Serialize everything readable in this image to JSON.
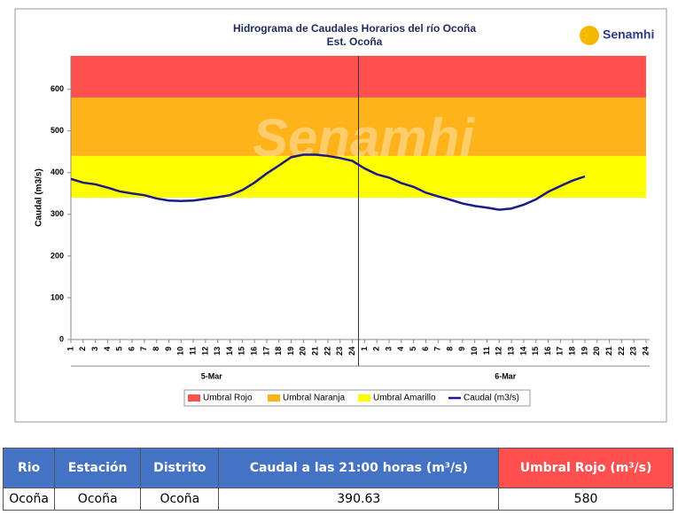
{
  "chart_data": {
    "type": "line",
    "title": "Hidrograma de Caudales Horarios del río Ocoña",
    "subtitle": "Est. Ocoña",
    "y_label": "Caudal (m3/s)",
    "logo": "Senamhi",
    "categories": [
      "1",
      "2",
      "3",
      "4",
      "5",
      "6",
      "7",
      "8",
      "9",
      "10",
      "11",
      "12",
      "13",
      "14",
      "15",
      "16",
      "17",
      "18",
      "19",
      "20",
      "21",
      "22",
      "23",
      "24",
      "1",
      "2",
      "3",
      "4",
      "5",
      "6",
      "7",
      "8",
      "9",
      "10",
      "11",
      "12",
      "13",
      "14",
      "15",
      "16",
      "17",
      "18",
      "19",
      "20",
      "21",
      "22",
      "23",
      "24"
    ],
    "group_labels": [
      "5-Mar",
      "6-Mar"
    ],
    "ylim": [
      0,
      680
    ],
    "yticks": [
      0,
      100,
      200,
      300,
      400,
      500,
      600
    ],
    "bands": [
      {
        "name": "Umbral Rojo",
        "color": "#ff5050",
        "from": 580,
        "to": 680
      },
      {
        "name": "Umbral Naranja",
        "color": "#ffb31a",
        "from": 440,
        "to": 580
      },
      {
        "name": "Umbral Amarillo",
        "color": "#ffff00",
        "from": 340,
        "to": 440
      }
    ],
    "series": [
      {
        "name": "Caudal (m3/s)",
        "color": "#1a1a8c",
        "values": [
          385,
          376,
          372,
          364,
          355,
          350,
          346,
          338,
          333,
          332,
          333,
          337,
          341,
          346,
          358,
          376,
          398,
          417,
          437,
          443,
          443,
          440,
          435,
          428,
          410,
          396,
          388,
          375,
          366,
          352,
          343,
          335,
          326,
          320,
          316,
          311,
          314,
          323,
          336,
          354,
          368,
          381,
          391,
          null,
          null,
          null,
          null,
          null
        ]
      }
    ]
  },
  "table": {
    "header": [
      "Rio",
      "Estación",
      "Distrito",
      "Caudal a las 21:00 horas (m³/s)",
      "Umbral Rojo (m³/s)"
    ],
    "rows": [
      [
        "Ocoña",
        "Ocoña",
        "Ocoña",
        "390.63",
        "580"
      ]
    ]
  }
}
